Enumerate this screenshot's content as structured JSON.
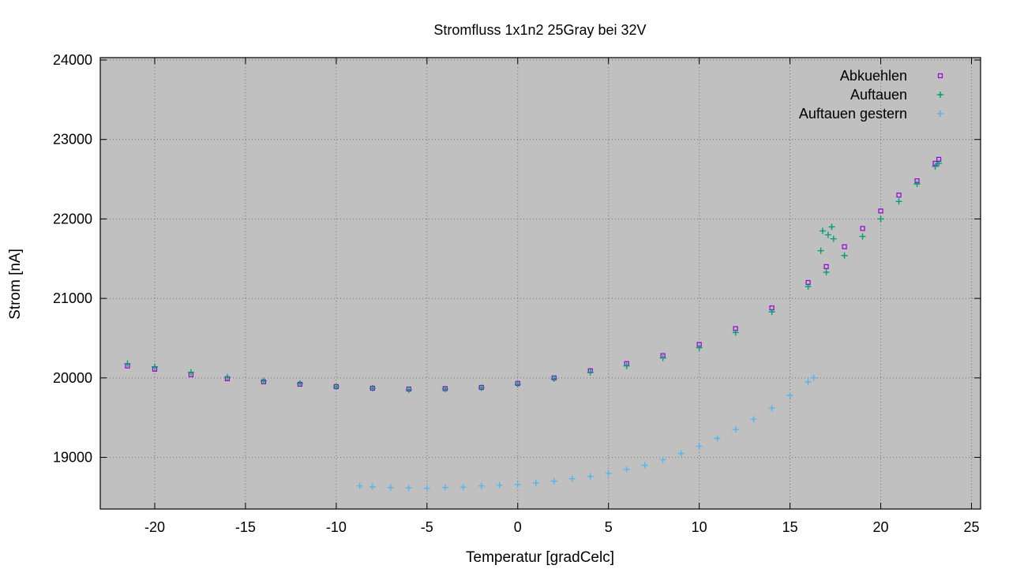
{
  "chart_data": {
    "type": "scatter",
    "title": "Stromfluss 1x1n2 25Gray bei 32V",
    "xlabel": "Temperatur [gradCelc]",
    "ylabel": "Strom [nA]",
    "xlim": [
      -23,
      25.5
    ],
    "ylim": [
      18350,
      24030
    ],
    "x_ticks": [
      -20,
      -15,
      -10,
      -5,
      0,
      5,
      10,
      15,
      20,
      25
    ],
    "y_ticks": [
      19000,
      20000,
      21000,
      22000,
      23000,
      24000
    ],
    "grid": true,
    "legend_position": "top-right",
    "background_color": "#c0c0c0",
    "series": [
      {
        "name": "Abkuehlen",
        "marker": "square",
        "color": "#9400d3",
        "x": [
          -21.5,
          -20,
          -18,
          -16,
          -14,
          -12,
          -10,
          -8,
          -6,
          -4,
          -2,
          0,
          2,
          4,
          6,
          8,
          10,
          12,
          14,
          16,
          17,
          18,
          19,
          20,
          21,
          22,
          23,
          23.2
        ],
        "y": [
          20150,
          20110,
          20040,
          19990,
          19950,
          19920,
          19890,
          19870,
          19860,
          19865,
          19880,
          19930,
          20000,
          20090,
          20180,
          20280,
          20420,
          20620,
          20880,
          21200,
          21400,
          21650,
          21880,
          22100,
          22300,
          22480,
          22700,
          22750
        ]
      },
      {
        "name": "Auftauen",
        "marker": "plus",
        "color": "#009e73",
        "x": [
          -21.5,
          -20,
          -18,
          -16,
          -14,
          -12,
          -10,
          -8,
          -6,
          -4,
          -2,
          0,
          2,
          4,
          6,
          8,
          10,
          12,
          14,
          16,
          17,
          18,
          19,
          20,
          21,
          22,
          23,
          23.2,
          16.8,
          17.1,
          17.3,
          16.7,
          17.4
        ],
        "y": [
          20180,
          20140,
          20070,
          20010,
          19960,
          19930,
          19890,
          19870,
          19850,
          19860,
          19875,
          19920,
          19990,
          20070,
          20150,
          20250,
          20380,
          20570,
          20830,
          21150,
          21330,
          21540,
          21780,
          22000,
          22220,
          22440,
          22660,
          22700,
          21850,
          21800,
          21900,
          21600,
          21750
        ]
      },
      {
        "name": "Auftauen gestern",
        "marker": "plus",
        "color": "#56b4e9",
        "x": [
          -8.7,
          -8,
          -7,
          -6,
          -5,
          -4,
          -3,
          -2,
          -1,
          0,
          1,
          2,
          3,
          4,
          5,
          6,
          7,
          8,
          9,
          10,
          11,
          12,
          13,
          14,
          15,
          16,
          16.3
        ],
        "y": [
          18640,
          18630,
          18620,
          18615,
          18610,
          18620,
          18625,
          18640,
          18650,
          18660,
          18680,
          18700,
          18730,
          18760,
          18800,
          18850,
          18900,
          18970,
          19050,
          19140,
          19240,
          19350,
          19480,
          19620,
          19780,
          19950,
          20000
        ]
      }
    ]
  }
}
